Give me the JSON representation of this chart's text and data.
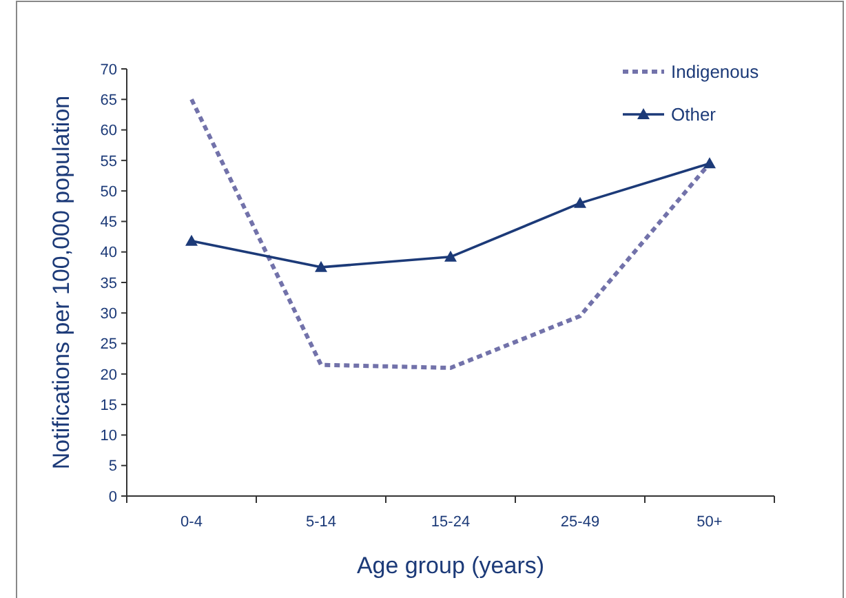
{
  "chart_data": {
    "type": "line",
    "xlabel": "Age group (years)",
    "ylabel": "Notifications per 100,000 population",
    "categories": [
      "0-4",
      "5-14",
      "15-24",
      "25-49",
      "50+"
    ],
    "series": [
      {
        "name": "Indigenous",
        "color": "#7272aa",
        "line_style": "dotted",
        "marker": "none",
        "values": [
          65,
          21.5,
          21,
          29.5,
          54.5
        ]
      },
      {
        "name": "Other",
        "color": "#1c3a78",
        "line_style": "solid",
        "marker": "triangle",
        "values": [
          41.8,
          37.5,
          39.2,
          48,
          54.5
        ]
      }
    ],
    "ylim": [
      0,
      70
    ],
    "yticks": [
      0,
      5,
      10,
      15,
      20,
      25,
      30,
      35,
      40,
      45,
      50,
      55,
      60,
      65,
      70
    ],
    "grid": false,
    "legend": "top right"
  }
}
